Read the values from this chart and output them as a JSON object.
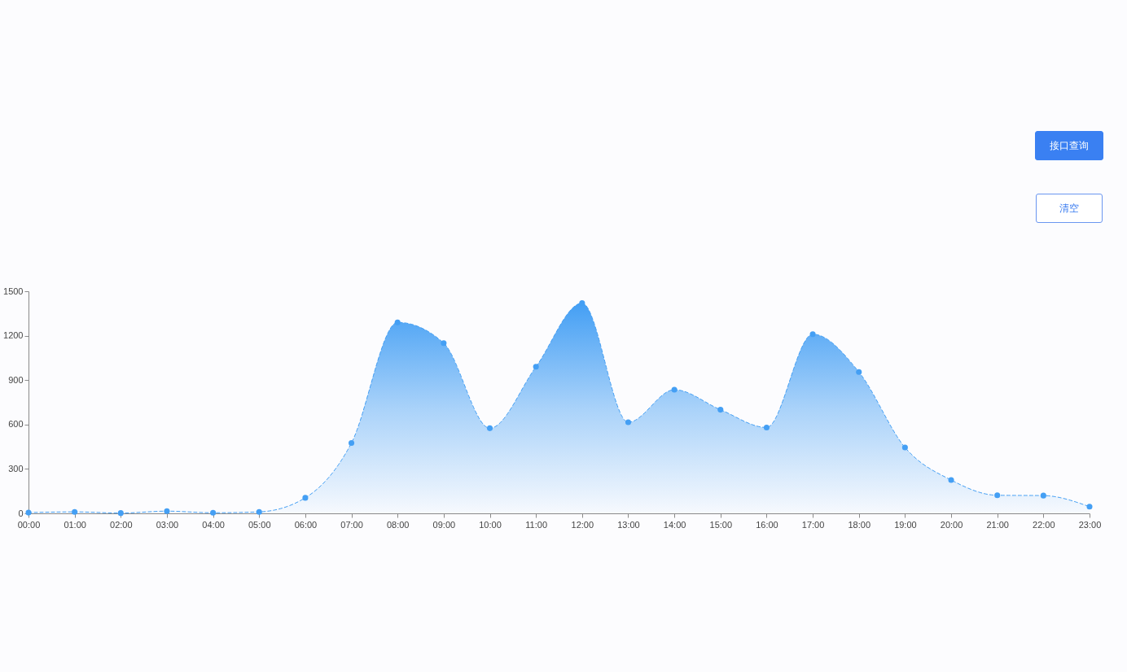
{
  "chart_data": {
    "type": "area",
    "categories": [
      "00:00",
      "01:00",
      "02:00",
      "03:00",
      "04:00",
      "05:00",
      "06:00",
      "07:00",
      "08:00",
      "09:00",
      "10:00",
      "11:00",
      "12:00",
      "13:00",
      "14:00",
      "15:00",
      "16:00",
      "17:00",
      "18:00",
      "19:00",
      "20:00",
      "21:00",
      "22:00",
      "23:00"
    ],
    "values": [
      5,
      10,
      2,
      15,
      4,
      10,
      105,
      475,
      1290,
      1150,
      575,
      990,
      1420,
      615,
      835,
      700,
      580,
      1210,
      955,
      445,
      225,
      122,
      120,
      45
    ],
    "color": "#449ff4",
    "ylim": [
      0,
      1500
    ],
    "yticks": [
      0,
      300,
      600,
      900,
      1200,
      1500
    ],
    "marker": "circle",
    "line_style": "dashed",
    "annotations": [
      "接口查询",
      "清空"
    ]
  }
}
